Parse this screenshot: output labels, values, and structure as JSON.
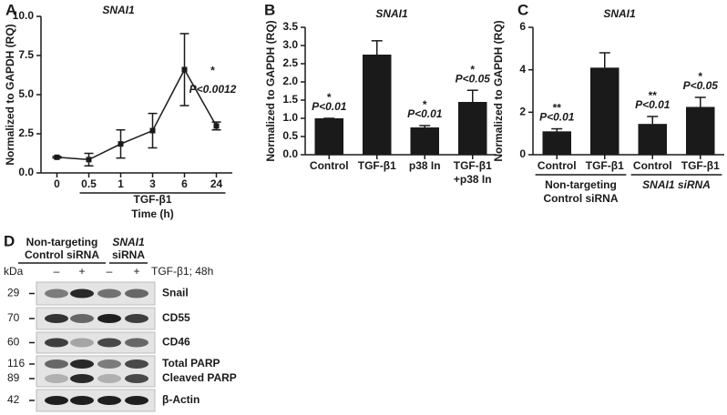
{
  "chart_data": [
    {
      "type": "line",
      "panel": "A",
      "title": "SNAI1",
      "y_label": "Normalized to GAPDH (RQ)",
      "categories": [
        "0",
        "0.5",
        "1",
        "3",
        "6",
        "24"
      ],
      "x_label": [
        "TGF-β1",
        "Time (h)"
      ],
      "values": [
        1.0,
        0.85,
        1.85,
        2.7,
        6.6,
        3.0
      ],
      "errors": [
        0.05,
        0.4,
        0.9,
        1.1,
        2.3,
        0.25
      ],
      "color": "#1a1a1a",
      "ylim": [
        0,
        10
      ],
      "yticks": [
        {
          "value": 0,
          "label": "0.0"
        },
        {
          "value": 2.5,
          "label": "2.5"
        },
        {
          "value": 5,
          "label": "5.0"
        },
        {
          "value": 7.5,
          "label": "7.5"
        },
        {
          "value": 10,
          "label": "10.0"
        }
      ],
      "annotations": [
        "*",
        "P<0.0012"
      ]
    },
    {
      "type": "bar",
      "panel": "B",
      "title": "SNAI1",
      "y_label": "Normalized to GAPDH (RQ)",
      "categories": [
        "Control",
        "TGF-β1",
        "p38 In",
        "TGF-β1\n+p38 In"
      ],
      "values": [
        1.0,
        2.75,
        0.75,
        1.45
      ],
      "errors": [
        0,
        0.38,
        0.05,
        0.32
      ],
      "color": "#1a1a1a",
      "stars": [
        "*",
        null,
        "*",
        "*"
      ],
      "pvalues": [
        "P<0.01",
        null,
        "P<0.01",
        "P<0.05"
      ],
      "ylim": [
        0,
        3.5
      ],
      "yticks": [
        {
          "value": 0,
          "label": "0.0"
        },
        {
          "value": 0.5,
          "label": "0.5"
        },
        {
          "value": 1,
          "label": "1.0"
        },
        {
          "value": 1.5,
          "label": "1.5"
        },
        {
          "value": 2,
          "label": "2.0"
        },
        {
          "value": 2.5,
          "label": "2.5"
        },
        {
          "value": 3,
          "label": "3.0"
        },
        {
          "value": 3.5,
          "label": "3.5"
        }
      ]
    },
    {
      "type": "bar",
      "panel": "C",
      "title": "SNAI1",
      "y_label": "Normalized to GAPDH (RQ)",
      "categories": [
        "Control",
        "TGF-β1",
        "Control",
        "TGF-β1"
      ],
      "groups": [
        [
          "Non-targeting",
          "Control siRNA"
        ],
        [
          "SNAI1 siRNA"
        ]
      ],
      "values": [
        1.1,
        4.1,
        1.45,
        2.25
      ],
      "errors": [
        0.12,
        0.7,
        0.35,
        0.45
      ],
      "color": "#1a1a1a",
      "stars": [
        "**",
        null,
        "**",
        "*"
      ],
      "pvalues": [
        "P<0.01",
        null,
        "P<0.01",
        "P<0.05"
      ],
      "ylim": [
        0,
        6
      ],
      "yticks": [
        0,
        2,
        4,
        6
      ]
    }
  ],
  "blot": {
    "panel": "D",
    "groups": [
      [
        "Non-targeting",
        "Control siRNA"
      ],
      [
        "SNAI1",
        "siRNA"
      ]
    ],
    "kda_label": "kDa",
    "lanes": [
      "–",
      "+",
      "–",
      "+"
    ],
    "treatment": "TGF-β1; 48h",
    "rows": [
      {
        "kda": [
          "29"
        ],
        "labels": [
          "Snail"
        ]
      },
      {
        "kda": [
          "70"
        ],
        "labels": [
          "CD55"
        ]
      },
      {
        "kda": [
          "60"
        ],
        "labels": [
          "CD46"
        ]
      },
      {
        "kda": [
          "116",
          "89"
        ],
        "labels": [
          "Total PARP",
          "Cleaved PARP"
        ]
      },
      {
        "kda": [
          "42"
        ],
        "labels": [
          "β-Actin"
        ]
      }
    ]
  }
}
